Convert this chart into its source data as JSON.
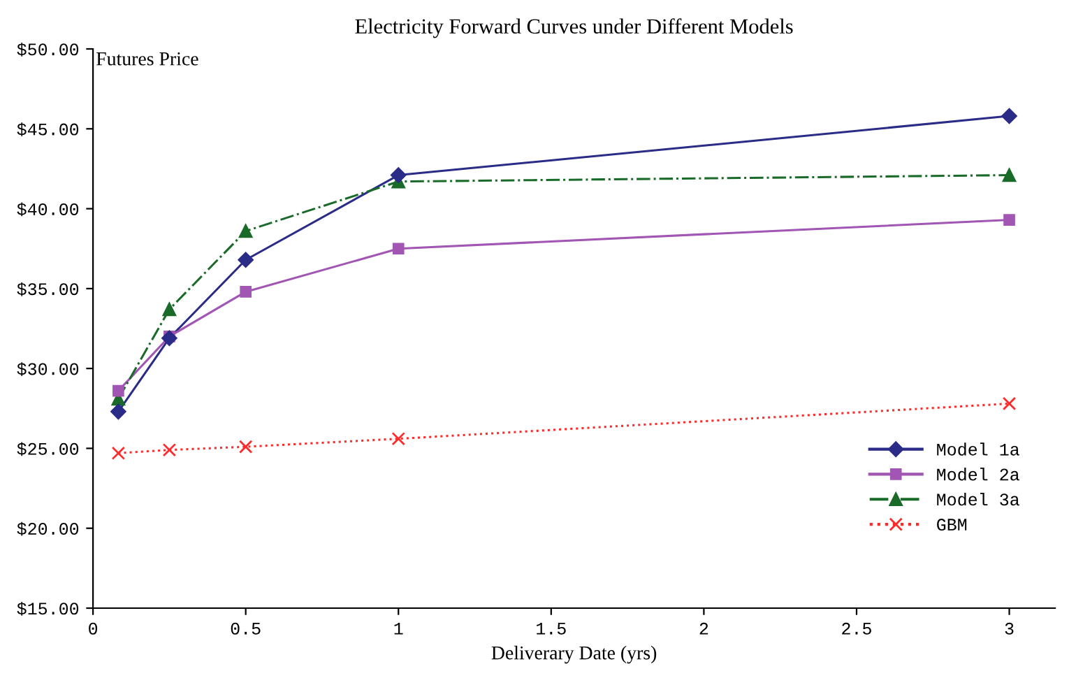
{
  "chart_data": {
    "type": "line",
    "title": "Electricity Forward Curves under Different Models",
    "xlabel": "Deliverary Date (yrs)",
    "ylabel": "Futures Price",
    "x": [
      0.083,
      0.25,
      0.5,
      1,
      3
    ],
    "series": [
      {
        "name": "Model 1a",
        "color": "#2b2b88",
        "marker": "diamond",
        "line_style": "solid",
        "values": [
          27.3,
          31.9,
          36.8,
          42.1,
          45.8
        ]
      },
      {
        "name": "Model 2a",
        "color": "#a256b4",
        "marker": "square",
        "line_style": "solid",
        "values": [
          28.6,
          32.0,
          34.8,
          37.5,
          39.3
        ]
      },
      {
        "name": "Model 3a",
        "color": "#1a6b2a",
        "marker": "triangle",
        "line_style": "dashed",
        "values": [
          28.1,
          33.7,
          38.6,
          41.7,
          42.1
        ]
      },
      {
        "name": "GBM",
        "color": "#ff2a2a",
        "marker": "cross",
        "line_style": "dotted",
        "values": [
          24.7,
          24.9,
          25.1,
          25.6,
          27.8
        ]
      }
    ],
    "xlim": [
      0,
      3.15
    ],
    "xticks": [
      0,
      0.5,
      1,
      1.5,
      2,
      2.5,
      3
    ],
    "ylim": [
      15,
      50
    ],
    "yticks": [
      {
        "value": 15,
        "label": "$15.00"
      },
      {
        "value": 20,
        "label": "$20.00"
      },
      {
        "value": 25,
        "label": "$25.00"
      },
      {
        "value": 30,
        "label": "$30.00"
      },
      {
        "value": 35,
        "label": "$35.00"
      },
      {
        "value": 40,
        "label": "$40.00"
      },
      {
        "value": 45,
        "label": "$45.00"
      },
      {
        "value": 50,
        "label": "$50.00"
      }
    ],
    "grid": false,
    "legend": "bottom right"
  }
}
